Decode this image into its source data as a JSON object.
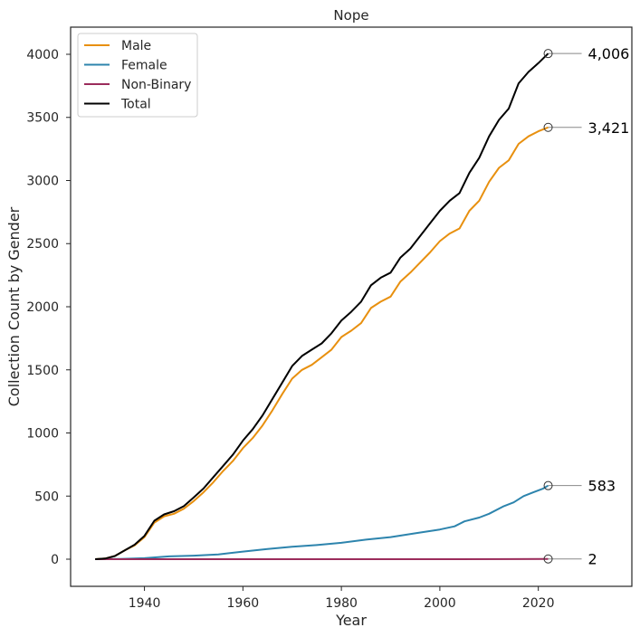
{
  "chart_data": {
    "type": "line",
    "title": "Nope",
    "xlabel": "Year",
    "ylabel": "Collection Count by Gender",
    "xlim": [
      1925,
      2039
    ],
    "ylim": [
      -215,
      4215
    ],
    "xticks": [
      1940,
      1960,
      1980,
      2000,
      2020
    ],
    "yticks": [
      0,
      500,
      1000,
      1500,
      2000,
      2500,
      3000,
      3500,
      4000
    ],
    "grid": false,
    "legend_position": "top-left",
    "series": [
      {
        "name": "Male",
        "color": "#e8900f",
        "end_label": "3,421",
        "x": [
          1930,
          1932,
          1934,
          1936,
          1938,
          1940,
          1942,
          1944,
          1946,
          1948,
          1950,
          1952,
          1954,
          1956,
          1958,
          1960,
          1962,
          1964,
          1966,
          1968,
          1970,
          1972,
          1974,
          1976,
          1978,
          1980,
          1982,
          1984,
          1986,
          1988,
          1990,
          1992,
          1994,
          1996,
          1998,
          2000,
          2002,
          2004,
          2006,
          2008,
          2010,
          2012,
          2014,
          2016,
          2018,
          2020,
          2022
        ],
        "y": [
          0,
          5,
          25,
          70,
          110,
          175,
          290,
          340,
          360,
          400,
          460,
          530,
          610,
          700,
          780,
          880,
          960,
          1060,
          1180,
          1310,
          1430,
          1500,
          1540,
          1600,
          1660,
          1760,
          1810,
          1870,
          1990,
          2040,
          2080,
          2200,
          2270,
          2350,
          2430,
          2520,
          2580,
          2620,
          2760,
          2840,
          2990,
          3100,
          3160,
          3290,
          3350,
          3390,
          3421
        ]
      },
      {
        "name": "Female",
        "color": "#2d84ad",
        "end_label": "583",
        "x": [
          1930,
          1935,
          1940,
          1945,
          1950,
          1955,
          1960,
          1965,
          1970,
          1975,
          1980,
          1985,
          1990,
          1995,
          2000,
          2003,
          2005,
          2008,
          2010,
          2013,
          2015,
          2017,
          2019,
          2021,
          2022
        ],
        "y": [
          0,
          2,
          8,
          22,
          28,
          38,
          60,
          80,
          98,
          112,
          130,
          155,
          175,
          205,
          235,
          260,
          300,
          330,
          360,
          420,
          450,
          500,
          530,
          560,
          583
        ]
      },
      {
        "name": "Non-Binary",
        "color": "#9b2c5b",
        "end_label": "2",
        "x": [
          1930,
          2000,
          2015,
          2022
        ],
        "y": [
          0,
          0,
          1,
          2
        ]
      },
      {
        "name": "Total",
        "color": "#000000",
        "end_label": "4,006",
        "x": [
          1930,
          1932,
          1934,
          1936,
          1938,
          1940,
          1942,
          1944,
          1946,
          1948,
          1950,
          1952,
          1954,
          1956,
          1958,
          1960,
          1962,
          1964,
          1966,
          1968,
          1970,
          1972,
          1974,
          1976,
          1978,
          1980,
          1982,
          1984,
          1986,
          1988,
          1990,
          1992,
          1994,
          1996,
          1998,
          2000,
          2002,
          2004,
          2006,
          2008,
          2010,
          2012,
          2014,
          2016,
          2018,
          2020,
          2022
        ],
        "y": [
          0,
          5,
          25,
          70,
          115,
          185,
          305,
          355,
          380,
          420,
          490,
          560,
          650,
          740,
          830,
          940,
          1030,
          1140,
          1270,
          1400,
          1530,
          1610,
          1660,
          1710,
          1790,
          1890,
          1960,
          2040,
          2170,
          2230,
          2270,
          2390,
          2460,
          2560,
          2660,
          2760,
          2840,
          2900,
          3060,
          3180,
          3350,
          3480,
          3570,
          3770,
          3860,
          3930,
          4006
        ]
      }
    ]
  }
}
